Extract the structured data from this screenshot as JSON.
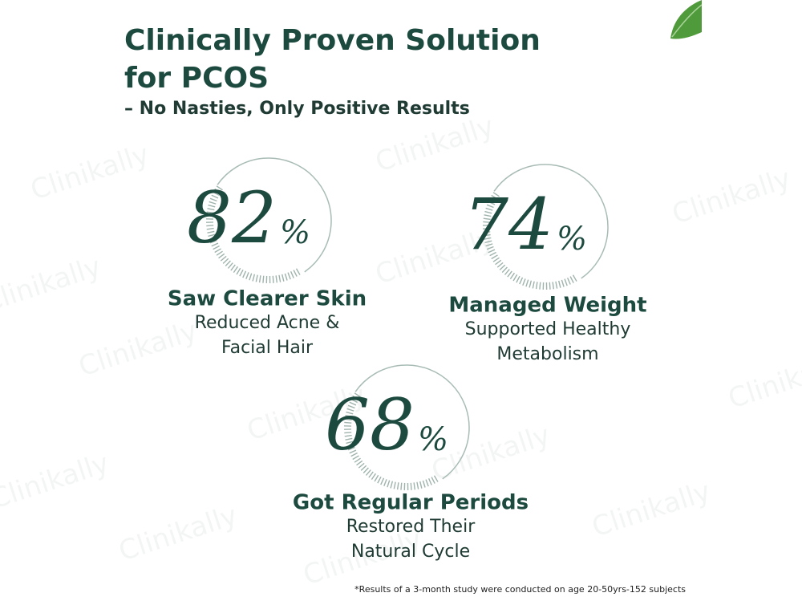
{
  "header": {
    "title_line1": "Clinically Proven Solution",
    "title_line2": "for PCOS",
    "subtitle": "– No Nasties, Only Positive Results"
  },
  "stats": [
    {
      "value": 82,
      "unit": "%",
      "heading": "Saw Clearer Skin",
      "lines": [
        "Reduced Acne &",
        "Facial Hair"
      ]
    },
    {
      "value": 74,
      "unit": "%",
      "heading": "Managed Weight",
      "lines": [
        "Supported Healthy",
        "Metabolism"
      ]
    },
    {
      "value": 68,
      "unit": "%",
      "heading": "Got Regular Periods",
      "lines": [
        "Restored Their",
        "Natural Cycle"
      ]
    }
  ],
  "footnote": "*Results of a 3-month study were conducted on age 20-50yrs-152 subjects",
  "watermark": "Clinikally"
}
